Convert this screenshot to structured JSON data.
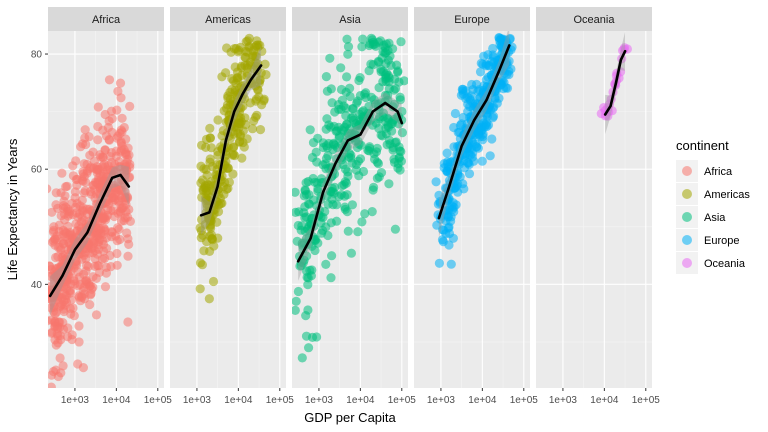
{
  "chart_data": {
    "type": "scatter",
    "facet_by": "continent",
    "panels": [
      {
        "name": "Africa",
        "color": "#F8766D",
        "x_range_log10": [
          2.35,
          4.35
        ],
        "y_mean_trend": [
          [
            2.4,
            38
          ],
          [
            2.7,
            41.5
          ],
          [
            3.0,
            46
          ],
          [
            3.3,
            49
          ],
          [
            3.6,
            54
          ],
          [
            3.9,
            58.5
          ],
          [
            4.1,
            59
          ],
          [
            4.3,
            57
          ]
        ],
        "trend": [
          [
            2.4,
            38
          ],
          [
            2.7,
            41.5
          ],
          [
            3.0,
            46
          ],
          [
            3.3,
            49
          ],
          [
            3.6,
            54
          ],
          [
            3.9,
            58.5
          ],
          [
            4.1,
            59
          ],
          [
            4.3,
            57
          ]
        ],
        "outliers": [
          [
            2.6,
            24
          ],
          [
            3.1,
            30
          ],
          [
            4.3,
            53
          ]
        ]
      },
      {
        "name": "Americas",
        "color": "#A3A500",
        "x_range_log10": [
          3.1,
          4.6
        ],
        "trend": [
          [
            3.1,
            52
          ],
          [
            3.3,
            52.5
          ],
          [
            3.5,
            57
          ],
          [
            3.7,
            65
          ],
          [
            3.9,
            70
          ],
          [
            4.1,
            73
          ],
          [
            4.3,
            75.5
          ],
          [
            4.55,
            78
          ]
        ],
        "outliers": [
          [
            3.3,
            37.5
          ]
        ]
      },
      {
        "name": "Asia",
        "color": "#00BF7D",
        "x_range_log10": [
          2.5,
          5.05
        ],
        "trend": [
          [
            2.5,
            44
          ],
          [
            2.8,
            48
          ],
          [
            3.1,
            56
          ],
          [
            3.4,
            61
          ],
          [
            3.7,
            65
          ],
          [
            4.0,
            66
          ],
          [
            4.3,
            70
          ],
          [
            4.6,
            71.5
          ],
          [
            4.9,
            70
          ],
          [
            5.0,
            68
          ]
        ],
        "outliers": [
          [
            2.75,
            29
          ],
          [
            2.7,
            31
          ]
        ]
      },
      {
        "name": "Europe",
        "color": "#00B0F6",
        "x_range_log10": [
          2.95,
          4.7
        ],
        "trend": [
          [
            2.95,
            51.5
          ],
          [
            3.2,
            57
          ],
          [
            3.5,
            64
          ],
          [
            3.8,
            68.5
          ],
          [
            4.1,
            72
          ],
          [
            4.4,
            77
          ],
          [
            4.65,
            81.5
          ]
        ],
        "outliers": [
          [
            3.25,
            43.5
          ],
          [
            3.3,
            48
          ]
        ]
      },
      {
        "name": "Oceania",
        "color": "#E76BF3",
        "x_range_log10": [
          4.0,
          4.55
        ],
        "trend": [
          [
            4.02,
            69.5
          ],
          [
            4.15,
            71
          ],
          [
            4.28,
            75
          ],
          [
            4.4,
            79
          ],
          [
            4.5,
            80.5
          ]
        ],
        "outliers": []
      }
    ],
    "x_axis": {
      "label": "GDP per Capita",
      "scale": "log10",
      "ticks": [
        3,
        4,
        5
      ],
      "tick_labels": [
        "1e+03",
        "1e+04",
        "1e+05"
      ],
      "range_log10": [
        2.35,
        5.15
      ]
    },
    "y_axis": {
      "label": "Life Expectancy in Years",
      "ticks": [
        40,
        60,
        80
      ],
      "tick_labels": [
        "40",
        "60",
        "80"
      ],
      "range": [
        22,
        84
      ]
    },
    "legend": {
      "title": "continent",
      "placement": "right",
      "entries": [
        "Africa",
        "Americas",
        "Asia",
        "Europe",
        "Oceania"
      ]
    },
    "grid": true
  }
}
